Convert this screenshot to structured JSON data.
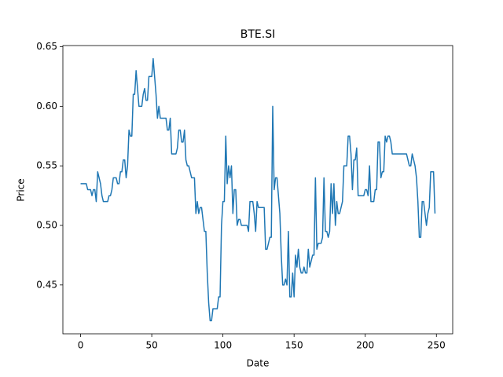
{
  "chart_data": {
    "type": "line",
    "title": "BTE.SI",
    "x_label": "Date",
    "y_label": "Price",
    "series": [
      {
        "color": "#1f77b4",
        "values": [
          0.535,
          0.535,
          0.535,
          0.535,
          0.535,
          0.53,
          0.53,
          0.53,
          0.525,
          0.53,
          0.53,
          0.52,
          0.545,
          0.54,
          0.535,
          0.525,
          0.52,
          0.52,
          0.52,
          0.52,
          0.525,
          0.525,
          0.53,
          0.54,
          0.54,
          0.54,
          0.535,
          0.535,
          0.545,
          0.545,
          0.555,
          0.555,
          0.54,
          0.55,
          0.58,
          0.575,
          0.575,
          0.61,
          0.61,
          0.63,
          0.615,
          0.6,
          0.6,
          0.6,
          0.61,
          0.615,
          0.605,
          0.605,
          0.625,
          0.625,
          0.625,
          0.64,
          0.625,
          0.61,
          0.59,
          0.6,
          0.59,
          0.59,
          0.59,
          0.59,
          0.59,
          0.58,
          0.58,
          0.59,
          0.56,
          0.56,
          0.56,
          0.56,
          0.565,
          0.58,
          0.58,
          0.57,
          0.57,
          0.58,
          0.555,
          0.55,
          0.55,
          0.545,
          0.54,
          0.54,
          0.54,
          0.51,
          0.52,
          0.51,
          0.515,
          0.515,
          0.505,
          0.495,
          0.495,
          0.46,
          0.435,
          0.42,
          0.42,
          0.43,
          0.43,
          0.43,
          0.43,
          0.44,
          0.44,
          0.5,
          0.52,
          0.52,
          0.575,
          0.535,
          0.55,
          0.54,
          0.55,
          0.51,
          0.53,
          0.53,
          0.5,
          0.505,
          0.505,
          0.5,
          0.5,
          0.5,
          0.5,
          0.5,
          0.495,
          0.52,
          0.52,
          0.52,
          0.51,
          0.495,
          0.52,
          0.515,
          0.515,
          0.515,
          0.515,
          0.515,
          0.48,
          0.48,
          0.485,
          0.49,
          0.49,
          0.6,
          0.53,
          0.54,
          0.54,
          0.525,
          0.51,
          0.475,
          0.45,
          0.45,
          0.455,
          0.45,
          0.495,
          0.44,
          0.44,
          0.46,
          0.44,
          0.475,
          0.465,
          0.48,
          0.465,
          0.46,
          0.46,
          0.465,
          0.46,
          0.46,
          0.48,
          0.465,
          0.47,
          0.475,
          0.475,
          0.54,
          0.48,
          0.485,
          0.485,
          0.485,
          0.49,
          0.54,
          0.495,
          0.495,
          0.49,
          0.495,
          0.535,
          0.51,
          0.535,
          0.5,
          0.52,
          0.51,
          0.51,
          0.515,
          0.52,
          0.55,
          0.55,
          0.55,
          0.575,
          0.575,
          0.56,
          0.53,
          0.555,
          0.555,
          0.565,
          0.525,
          0.525,
          0.525,
          0.525,
          0.525,
          0.53,
          0.53,
          0.525,
          0.55,
          0.52,
          0.52,
          0.52,
          0.53,
          0.53,
          0.57,
          0.57,
          0.54,
          0.545,
          0.545,
          0.575,
          0.57,
          0.575,
          0.575,
          0.57,
          0.56,
          0.56,
          0.56,
          0.56,
          0.56,
          0.56,
          0.56,
          0.56,
          0.56,
          0.56,
          0.56,
          0.555,
          0.55,
          0.55,
          0.56,
          0.555,
          0.55,
          0.54,
          0.52,
          0.49,
          0.49,
          0.52,
          0.52,
          0.51,
          0.5,
          0.51,
          0.515,
          0.545,
          0.545,
          0.545,
          0.51
        ]
      }
    ],
    "xlim": [
      -12.45,
      261.45
    ],
    "xticks": [
      0,
      50,
      100,
      150,
      200,
      250
    ],
    "ylim": [
      0.409,
      0.651
    ],
    "yticks": [
      0.45,
      {
        "value": 0.5,
        "label": "0.50"
      },
      0.55,
      {
        "value": 0.6,
        "label": "0.60"
      },
      0.65
    ]
  }
}
